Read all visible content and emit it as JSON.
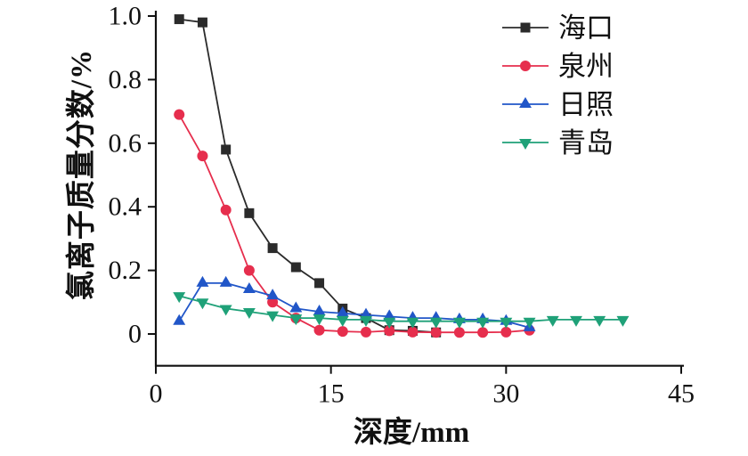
{
  "figure": {
    "background": "#ffffff"
  },
  "chart_data": {
    "type": "line",
    "title": "",
    "xlabel": "深度/mm",
    "ylabel": "氯离子质量分数/%",
    "xlim": [
      0,
      45
    ],
    "ylim": [
      -0.1,
      1.0
    ],
    "xticks": [
      0,
      15,
      30,
      45
    ],
    "xtick_labels": [
      "0",
      "15",
      "30",
      "45"
    ],
    "yticks": [
      0,
      0.2,
      0.4,
      0.6,
      0.8,
      1.0
    ],
    "ytick_labels": [
      "0",
      "0.2",
      "0.4",
      "0.6",
      "0.8",
      "1.0"
    ],
    "grid": false,
    "legend_position": "top-right",
    "axis_color": "#111111",
    "series": [
      {
        "key": "haikou",
        "name": "海口",
        "color": "#2b2b2b",
        "marker": "square",
        "x": [
          2,
          4,
          6,
          8,
          10,
          12,
          14,
          16,
          18,
          20,
          22,
          24
        ],
        "y": [
          0.99,
          0.98,
          0.58,
          0.38,
          0.27,
          0.21,
          0.16,
          0.08,
          0.05,
          0.012,
          0.01,
          0.005
        ]
      },
      {
        "key": "quanzhou",
        "name": "泉州",
        "color": "#e62e4d",
        "marker": "circle",
        "x": [
          2,
          4,
          6,
          8,
          10,
          12,
          14,
          16,
          18,
          20,
          22,
          24,
          26,
          28,
          30,
          32
        ],
        "y": [
          0.69,
          0.56,
          0.39,
          0.2,
          0.1,
          0.05,
          0.012,
          0.008,
          0.006,
          0.01,
          0.006,
          0.005,
          0.005,
          0.005,
          0.006,
          0.012
        ]
      },
      {
        "key": "rizhao",
        "name": "日照",
        "color": "#2156c8",
        "marker": "triangle-up",
        "x": [
          2,
          4,
          6,
          8,
          10,
          12,
          14,
          16,
          18,
          20,
          22,
          24,
          26,
          28,
          30,
          32
        ],
        "y": [
          0.04,
          0.16,
          0.16,
          0.14,
          0.12,
          0.08,
          0.07,
          0.065,
          0.06,
          0.055,
          0.05,
          0.05,
          0.045,
          0.045,
          0.04,
          0.02
        ]
      },
      {
        "key": "qingdao",
        "name": "青岛",
        "color": "#1fa178",
        "marker": "triangle-down",
        "x": [
          2,
          4,
          6,
          8,
          10,
          12,
          14,
          16,
          18,
          20,
          22,
          24,
          26,
          28,
          30,
          32,
          34,
          36,
          38,
          40
        ],
        "y": [
          0.12,
          0.1,
          0.08,
          0.07,
          0.06,
          0.05,
          0.05,
          0.045,
          0.045,
          0.04,
          0.04,
          0.04,
          0.04,
          0.04,
          0.04,
          0.04,
          0.045,
          0.045,
          0.045,
          0.045
        ]
      }
    ]
  }
}
